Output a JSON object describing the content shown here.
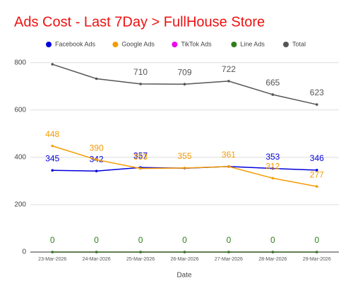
{
  "chart_data": {
    "type": "line",
    "title": "Ads Cost - Last 7Day > FullHouse Store",
    "x_label": "Date",
    "categories": [
      "23-Mar-2026",
      "24-Mar-2026",
      "25-Mar-2026",
      "26-Mar-2026",
      "27-Mar-2026",
      "28-Mar-2026",
      "29-Mar-2026"
    ],
    "series": [
      {
        "name": "Facebook Ads",
        "color": "#0000dd",
        "values": [
          345,
          342,
          357,
          354,
          361,
          353,
          346
        ],
        "value_labels": [
          "345",
          "342",
          "357",
          null,
          null,
          "353",
          "346"
        ]
      },
      {
        "name": "Google Ads",
        "color": "#f59b00",
        "values": [
          448,
          390,
          353,
          355,
          361,
          312,
          277
        ],
        "value_labels": [
          "448",
          "390",
          "353",
          "355",
          "361",
          "312",
          "277"
        ]
      },
      {
        "name": "TikTok Ads",
        "color": "#ee00ee",
        "values": [
          0,
          0,
          0,
          0,
          0,
          0,
          0
        ],
        "value_labels": [
          null,
          null,
          null,
          null,
          null,
          null,
          null
        ]
      },
      {
        "name": "Line Ads",
        "color": "#2e7d1a",
        "values": [
          0,
          0,
          0,
          0,
          0,
          0,
          0
        ],
        "value_labels": [
          "0",
          "0",
          "0",
          "0",
          "0",
          "0",
          "0"
        ]
      },
      {
        "name": "Total",
        "color": "#555555",
        "values": [
          793,
          732,
          710,
          709,
          722,
          665,
          623
        ],
        "value_labels": [
          null,
          null,
          "710",
          "709",
          "722",
          "665",
          "623"
        ]
      }
    ],
    "ylim": [
      0,
      820
    ],
    "yticks": [
      0,
      200,
      400,
      600,
      800
    ],
    "grid": true
  }
}
